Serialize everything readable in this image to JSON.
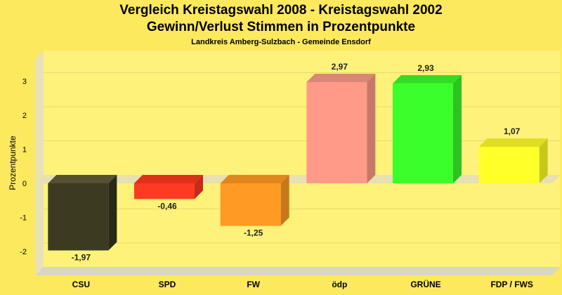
{
  "chart_data": {
    "type": "bar",
    "title": "Vergleich Kreistagswahl 2008 - Kreistagswahl 2002",
    "title2": "Gewinn/Verlust Stimmen in Prozentpunkte",
    "subtitle": "Landkreis Amberg-Sulzbach - Gemeinde Ensdorf",
    "ylabel": "Prozentpunkte",
    "xlabel": "",
    "ylim": [
      -2.6,
      3.6
    ],
    "yticks": [
      -2,
      -1,
      0,
      1,
      2,
      3
    ],
    "categories": [
      "CSU",
      "SPD",
      "FW",
      "ödp",
      "GRÜNE",
      "FDP / FWS"
    ],
    "values": [
      -1.97,
      -0.46,
      -1.25,
      2.97,
      2.93,
      1.07
    ],
    "value_labels": [
      "-1,97",
      "-0,46",
      "-1,25",
      "2,97",
      "2,93",
      "1,07"
    ],
    "colors": [
      "#3d3a22",
      "#ff3a22",
      "#ff9a22",
      "#ff9a88",
      "#3aff2a",
      "#ffff2a"
    ],
    "side_colors": [
      "#2a2817",
      "#c42c18",
      "#c97818",
      "#c87868",
      "#2cc21f",
      "#c8c81c"
    ],
    "top_colors": [
      "#555030",
      "#e0301c",
      "#e0861c",
      "#d98878",
      "#33dd25",
      "#dede22"
    ],
    "grid": true,
    "background": "#fde95e",
    "plot_color": "#fff27a"
  }
}
